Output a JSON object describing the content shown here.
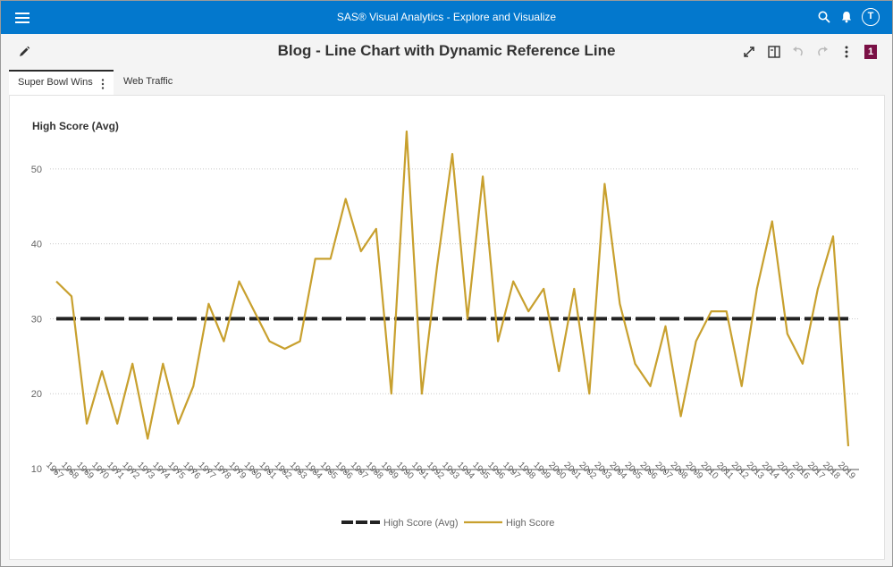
{
  "app": {
    "title": "SAS® Visual Analytics - Explore and Visualize",
    "user_initial": "T"
  },
  "report": {
    "title": "Blog - Line Chart with Dynamic Reference Line",
    "page_badge": "1"
  },
  "tabs": [
    {
      "label": "Super Bowl Wins",
      "active": true
    },
    {
      "label": "Web Traffic",
      "active": false
    }
  ],
  "icons": [
    "menu-icon",
    "search-icon",
    "bell-icon",
    "avatar-icon",
    "edit-icon",
    "expand-icon",
    "panel-icon",
    "undo-icon",
    "redo-icon",
    "more-icon",
    "tab-kebab-icon"
  ],
  "chart_data": {
    "type": "line",
    "title": "High Score (Avg)",
    "x": [
      "1967",
      "1968",
      "1969",
      "1970",
      "1971",
      "1972",
      "1973",
      "1974",
      "1975",
      "1976",
      "1977",
      "1978",
      "1979",
      "1980",
      "1981",
      "1982",
      "1983",
      "1984",
      "1985",
      "1986",
      "1987",
      "1988",
      "1989",
      "1990",
      "1991",
      "1992",
      "1993",
      "1994",
      "1995",
      "1996",
      "1997",
      "1998",
      "1999",
      "2000",
      "2001",
      "2002",
      "2003",
      "2004",
      "2005",
      "2006",
      "2007",
      "2008",
      "2009",
      "2010",
      "2011",
      "2012",
      "2013",
      "2014",
      "2015",
      "2016",
      "2017",
      "2018",
      "2019"
    ],
    "series": [
      {
        "name": "High Score (Avg)",
        "color": "#222222",
        "style": "dashed",
        "values": [
          30,
          30,
          30,
          30,
          30,
          30,
          30,
          30,
          30,
          30,
          30,
          30,
          30,
          30,
          30,
          30,
          30,
          30,
          30,
          30,
          30,
          30,
          30,
          30,
          30,
          30,
          30,
          30,
          30,
          30,
          30,
          30,
          30,
          30,
          30,
          30,
          30,
          30,
          30,
          30,
          30,
          30,
          30,
          30,
          30,
          30,
          30,
          30,
          30,
          30,
          30,
          30,
          30
        ]
      },
      {
        "name": "High Score",
        "color": "#c8a02e",
        "style": "solid",
        "values": [
          35,
          33,
          16,
          23,
          16,
          24,
          14,
          24,
          16,
          21,
          32,
          27,
          35,
          31,
          27,
          26,
          27,
          38,
          38,
          46,
          39,
          42,
          20,
          55,
          20,
          37,
          52,
          30,
          49,
          27,
          35,
          31,
          34,
          23,
          34,
          20,
          48,
          32,
          24,
          21,
          29,
          17,
          27,
          31,
          31,
          21,
          34,
          43,
          28,
          24,
          34,
          41,
          13
        ]
      }
    ],
    "yticks": [
      10,
      20,
      30,
      40,
      50
    ],
    "ylim": [
      10,
      55
    ],
    "grid": true,
    "legend": "bottom-center"
  }
}
